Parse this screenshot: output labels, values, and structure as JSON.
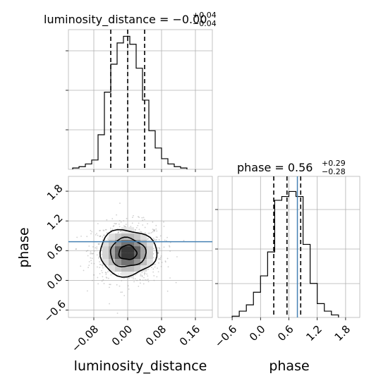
{
  "chart_data": {
    "type": "corner",
    "parameters": [
      "luminosity_distance",
      "phase"
    ],
    "truth": {
      "luminosity_distance": null,
      "phase": 0.78
    },
    "panels": [
      {
        "name": "luminosity_distance-marginal",
        "type": "histogram",
        "title_prefix": "luminosity_distance = ",
        "median": "−0.00",
        "plus": "+0.04",
        "minus": "−0.04",
        "xlim": [
          -0.14,
          0.2
        ],
        "ylim": [
          0,
          1.05
        ],
        "bin_edges": [
          -0.13,
          -0.115,
          -0.1,
          -0.085,
          -0.07,
          -0.055,
          -0.04,
          -0.025,
          -0.01,
          0.005,
          0.02,
          0.035,
          0.05,
          0.065,
          0.08,
          0.095,
          0.11,
          0.125,
          0.14
        ],
        "counts": [
          0.01,
          0.02,
          0.04,
          0.07,
          0.26,
          0.58,
          0.79,
          0.95,
          1.0,
          0.94,
          0.76,
          0.52,
          0.29,
          0.16,
          0.08,
          0.04,
          0.02,
          0.01
        ],
        "quantiles": [
          -0.04,
          0.0,
          0.04
        ]
      },
      {
        "name": "phase-marginal",
        "type": "histogram",
        "title_prefix": "phase = ",
        "median": "0.56",
        "plus": "+0.29",
        "minus": "−0.28",
        "xlim": [
          -0.9,
          2.1
        ],
        "ylim": [
          0,
          1.12
        ],
        "xticks": [
          -0.6,
          0.0,
          0.6,
          1.2,
          1.8
        ],
        "xtick_labels": [
          "−0.6",
          "0.0",
          "0.6",
          "1.2",
          "1.8"
        ],
        "xlabel": "phase",
        "bin_edges": [
          -0.6,
          -0.45,
          -0.3,
          -0.15,
          0.0,
          0.15,
          0.3,
          0.45,
          0.6,
          0.75,
          0.9,
          1.05,
          1.2,
          1.35,
          1.5,
          1.65
        ],
        "counts": [
          0.01,
          0.05,
          0.1,
          0.2,
          0.33,
          0.52,
          0.93,
          0.96,
          1.0,
          0.96,
          0.58,
          0.27,
          0.11,
          0.05,
          0.02
        ],
        "quantiles": [
          0.28,
          0.56,
          0.85
        ]
      },
      {
        "name": "2d-posterior",
        "type": "contour",
        "x_param": "luminosity_distance",
        "y_param": "phase",
        "xlim": [
          -0.14,
          0.2
        ],
        "ylim": [
          -0.75,
          2.1
        ],
        "xticks": [
          -0.08,
          0.0,
          0.08,
          0.16
        ],
        "xtick_labels": [
          "−0.08",
          "0.00",
          "0.08",
          "0.16"
        ],
        "yticks": [
          -0.6,
          0.0,
          0.6,
          1.2,
          1.8
        ],
        "ytick_labels": [
          "−0.6",
          "0.0",
          "0.6",
          "1.2",
          "1.8"
        ],
        "xlabel": "luminosity_distance",
        "ylabel": "phase",
        "center": [
          0.0,
          0.56
        ],
        "sigma": [
          0.04,
          0.29
        ],
        "contour_levels": [
          0.5,
          1.0,
          1.6
        ]
      }
    ]
  }
}
